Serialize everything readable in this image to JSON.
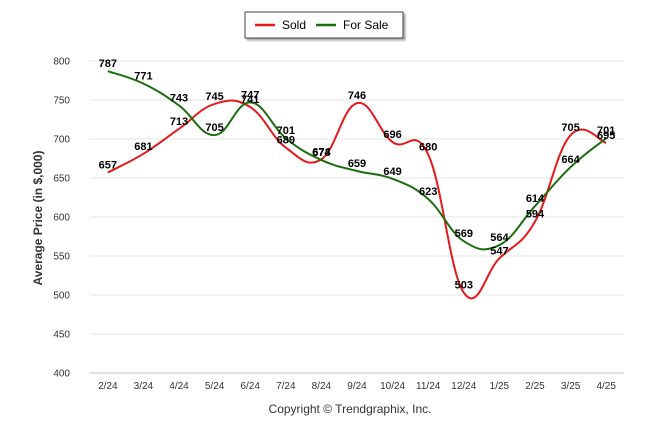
{
  "chart_data": {
    "type": "line",
    "title": "",
    "xlabel": "",
    "ylabel": "Average Price (in $,000)",
    "ylim": [
      400,
      800
    ],
    "yticks": [
      400,
      450,
      500,
      550,
      600,
      650,
      700,
      750,
      800
    ],
    "grid": true,
    "legend_position": "top-center",
    "categories": [
      "2/24",
      "3/24",
      "4/24",
      "5/24",
      "6/24",
      "7/24",
      "8/24",
      "9/24",
      "10/24",
      "11/24",
      "12/24",
      "1/25",
      "2/25",
      "3/25",
      "4/25"
    ],
    "series": [
      {
        "name": "Sold",
        "color": "#e41a1c",
        "values": [
          657,
          681,
          713,
          745,
          741,
          689,
          674,
          746,
          696,
          680,
          503,
          547,
          594,
          705,
          695
        ]
      },
      {
        "name": "For Sale",
        "color": "#1a6e0e",
        "values": [
          787,
          771,
          743,
          705,
          747,
          701,
          673,
          659,
          649,
          623,
          569,
          564,
          614,
          664,
          701
        ]
      }
    ]
  },
  "footer": {
    "copyright": "Copyright © Trendgraphix, Inc."
  }
}
